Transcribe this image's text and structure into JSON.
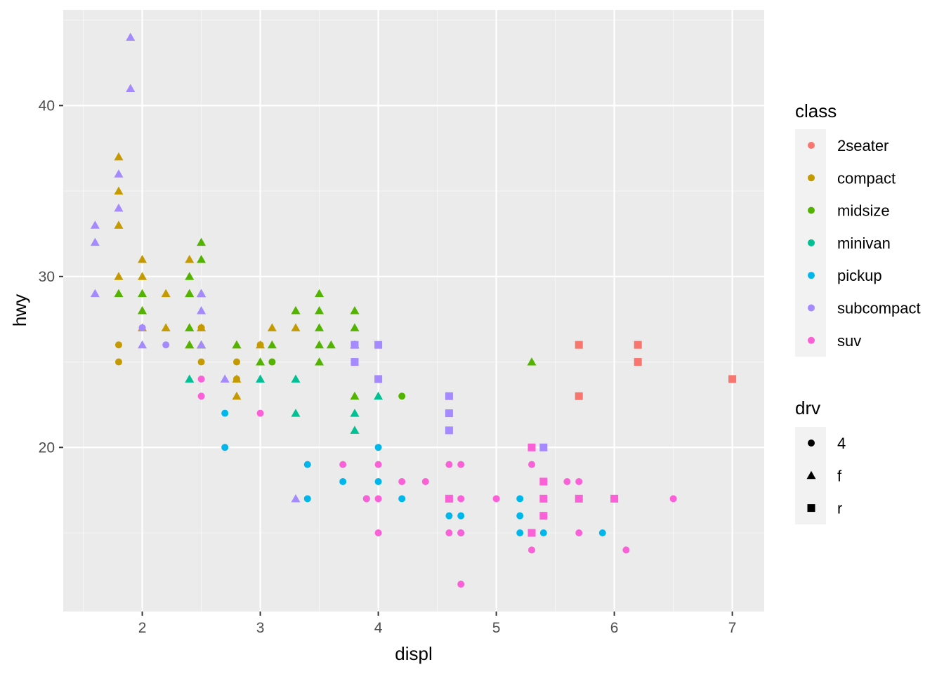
{
  "chart_data": {
    "type": "scatter",
    "xlabel": "displ",
    "ylabel": "hwy",
    "xlim": [
      1.33,
      7.27
    ],
    "ylim": [
      10.4,
      45.6
    ],
    "x_ticks": [
      2,
      3,
      4,
      5,
      6,
      7
    ],
    "y_ticks": [
      20,
      30,
      40
    ],
    "grid": true,
    "legends": [
      {
        "title": "class",
        "mapping": "color",
        "entries": [
          {
            "label": "2seater",
            "color": "#F8766D"
          },
          {
            "label": "compact",
            "color": "#C49A00"
          },
          {
            "label": "midsize",
            "color": "#53B400"
          },
          {
            "label": "minivan",
            "color": "#00C094"
          },
          {
            "label": "pickup",
            "color": "#00B6EB"
          },
          {
            "label": "subcompact",
            "color": "#A58AFF"
          },
          {
            "label": "suv",
            "color": "#FB61D7"
          }
        ]
      },
      {
        "title": "drv",
        "mapping": "shape",
        "entries": [
          {
            "label": "4",
            "shape": "circle"
          },
          {
            "label": "f",
            "shape": "triangle"
          },
          {
            "label": "r",
            "shape": "square"
          }
        ]
      }
    ],
    "legend_position": "right",
    "series": [
      {
        "class": "2seater",
        "drv": "r",
        "points": [
          [
            5.7,
            26
          ],
          [
            5.7,
            23
          ],
          [
            6.2,
            26
          ],
          [
            6.2,
            25
          ],
          [
            7.0,
            24
          ]
        ]
      },
      {
        "class": "compact",
        "drv": "4",
        "points": [
          [
            1.8,
            26
          ],
          [
            1.8,
            25
          ],
          [
            2.5,
            27
          ],
          [
            2.5,
            25
          ],
          [
            2.8,
            25
          ],
          [
            2.8,
            24
          ],
          [
            3.0,
            26
          ],
          [
            3.1,
            25
          ]
        ]
      },
      {
        "class": "compact",
        "drv": "f",
        "points": [
          [
            1.8,
            37
          ],
          [
            1.8,
            35
          ],
          [
            1.8,
            33
          ],
          [
            1.8,
            30
          ],
          [
            2.0,
            31
          ],
          [
            2.0,
            30
          ],
          [
            2.0,
            28
          ],
          [
            2.0,
            27
          ],
          [
            2.2,
            29
          ],
          [
            2.2,
            27
          ],
          [
            2.4,
            31
          ],
          [
            2.4,
            29
          ],
          [
            2.4,
            27
          ],
          [
            2.4,
            26
          ],
          [
            2.5,
            29
          ],
          [
            2.5,
            27
          ],
          [
            2.5,
            26
          ],
          [
            2.8,
            26
          ],
          [
            2.8,
            24
          ],
          [
            2.8,
            23
          ],
          [
            3.0,
            26
          ],
          [
            3.1,
            27
          ],
          [
            3.3,
            28
          ],
          [
            3.3,
            27
          ]
        ]
      },
      {
        "class": "midsize",
        "drv": "4",
        "points": [
          [
            3.1,
            25
          ],
          [
            4.2,
            23
          ]
        ]
      },
      {
        "class": "midsize",
        "drv": "f",
        "points": [
          [
            1.8,
            29
          ],
          [
            2.0,
            29
          ],
          [
            2.0,
            28
          ],
          [
            2.4,
            30
          ],
          [
            2.4,
            29
          ],
          [
            2.4,
            27
          ],
          [
            2.4,
            26
          ],
          [
            2.5,
            32
          ],
          [
            2.5,
            31
          ],
          [
            2.5,
            29
          ],
          [
            2.5,
            26
          ],
          [
            2.8,
            26
          ],
          [
            3.0,
            25
          ],
          [
            3.1,
            26
          ],
          [
            3.3,
            28
          ],
          [
            3.5,
            29
          ],
          [
            3.5,
            28
          ],
          [
            3.5,
            27
          ],
          [
            3.5,
            26
          ],
          [
            3.5,
            25
          ],
          [
            3.6,
            26
          ],
          [
            3.8,
            28
          ],
          [
            3.8,
            27
          ],
          [
            3.8,
            26
          ],
          [
            3.8,
            23
          ],
          [
            5.3,
            25
          ]
        ]
      },
      {
        "class": "minivan",
        "drv": "f",
        "points": [
          [
            2.4,
            24
          ],
          [
            3.0,
            24
          ],
          [
            3.3,
            24
          ],
          [
            3.3,
            22
          ],
          [
            3.8,
            22
          ],
          [
            3.8,
            21
          ],
          [
            4.0,
            23
          ]
        ]
      },
      {
        "class": "pickup",
        "drv": "4",
        "points": [
          [
            2.7,
            22
          ],
          [
            2.7,
            20
          ],
          [
            3.4,
            19
          ],
          [
            3.4,
            17
          ],
          [
            3.7,
            18
          ],
          [
            3.9,
            17
          ],
          [
            4.0,
            20
          ],
          [
            4.0,
            18
          ],
          [
            4.2,
            17
          ],
          [
            4.6,
            17
          ],
          [
            4.6,
            16
          ],
          [
            4.7,
            16
          ],
          [
            4.7,
            15
          ],
          [
            5.2,
            17
          ],
          [
            5.2,
            16
          ],
          [
            5.2,
            15
          ],
          [
            5.4,
            15
          ],
          [
            5.7,
            17
          ],
          [
            5.9,
            15
          ]
        ]
      },
      {
        "class": "subcompact",
        "drv": "4",
        "points": [
          [
            2.0,
            27
          ],
          [
            2.2,
            26
          ]
        ]
      },
      {
        "class": "subcompact",
        "drv": "f",
        "points": [
          [
            1.6,
            33
          ],
          [
            1.6,
            32
          ],
          [
            1.6,
            29
          ],
          [
            1.8,
            36
          ],
          [
            1.8,
            34
          ],
          [
            1.9,
            44
          ],
          [
            1.9,
            41
          ],
          [
            2.0,
            26
          ],
          [
            2.5,
            29
          ],
          [
            2.5,
            28
          ],
          [
            2.5,
            26
          ],
          [
            2.7,
            24
          ],
          [
            3.3,
            17
          ]
        ]
      },
      {
        "class": "subcompact",
        "drv": "r",
        "points": [
          [
            3.8,
            26
          ],
          [
            3.8,
            25
          ],
          [
            4.0,
            26
          ],
          [
            4.0,
            24
          ],
          [
            4.6,
            23
          ],
          [
            4.6,
            22
          ],
          [
            4.6,
            21
          ],
          [
            5.4,
            20
          ]
        ]
      },
      {
        "class": "suv",
        "drv": "4",
        "points": [
          [
            2.5,
            24
          ],
          [
            2.5,
            23
          ],
          [
            3.0,
            22
          ],
          [
            3.7,
            19
          ],
          [
            3.9,
            17
          ],
          [
            4.0,
            19
          ],
          [
            4.0,
            17
          ],
          [
            4.0,
            15
          ],
          [
            4.2,
            18
          ],
          [
            4.4,
            18
          ],
          [
            4.6,
            19
          ],
          [
            4.6,
            15
          ],
          [
            4.7,
            19
          ],
          [
            4.7,
            17
          ],
          [
            4.7,
            15
          ],
          [
            4.7,
            12
          ],
          [
            5.0,
            17
          ],
          [
            5.3,
            19
          ],
          [
            5.3,
            14
          ],
          [
            5.6,
            18
          ],
          [
            5.7,
            18
          ],
          [
            5.7,
            15
          ],
          [
            6.1,
            14
          ],
          [
            6.5,
            17
          ]
        ]
      },
      {
        "class": "suv",
        "drv": "r",
        "points": [
          [
            4.6,
            17
          ],
          [
            5.3,
            20
          ],
          [
            5.3,
            15
          ],
          [
            5.4,
            18
          ],
          [
            5.4,
            17
          ],
          [
            5.4,
            16
          ],
          [
            5.7,
            17
          ],
          [
            6.0,
            17
          ]
        ]
      }
    ]
  }
}
